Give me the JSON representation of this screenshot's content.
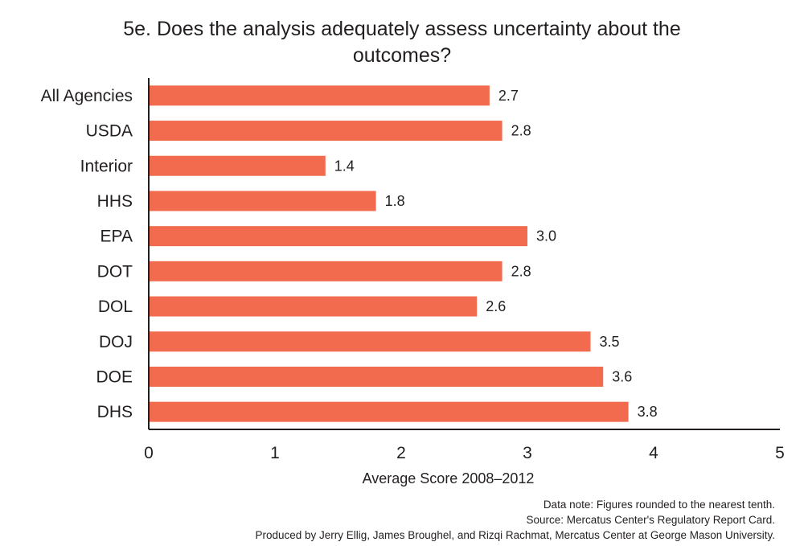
{
  "chart_data": {
    "type": "bar",
    "orientation": "horizontal",
    "title_lines": [
      "5e. Does the analysis adequately assess uncertainty about the",
      "outcomes?"
    ],
    "categories": [
      "All Agencies",
      "USDA",
      "Interior",
      "HHS",
      "EPA",
      "DOT",
      "DOL",
      "DOJ",
      "DOE",
      "DHS"
    ],
    "values": [
      2.7,
      2.8,
      1.4,
      1.8,
      3.0,
      2.8,
      2.6,
      3.5,
      3.6,
      3.8
    ],
    "value_labels": [
      "2.7",
      "2.8",
      "1.4",
      "1.8",
      "3.0",
      "2.8",
      "2.6",
      "3.5",
      "3.6",
      "3.8"
    ],
    "xlabel": "Average Score 2008–2012",
    "ylabel": "",
    "xlim": [
      0,
      5
    ],
    "xticks": [
      "0",
      "1",
      "2",
      "3",
      "4",
      "5"
    ],
    "bar_color": "#f26b4f",
    "grid": false
  },
  "notes": {
    "data_note": "Data note: Figures rounded to the nearest tenth.",
    "source": "Source: Mercatus Center's Regulatory Report Card.",
    "produced_by": "Produced by Jerry Ellig, James Broughel, and Rizqi Rachmat, Mercatus Center at George Mason University."
  }
}
